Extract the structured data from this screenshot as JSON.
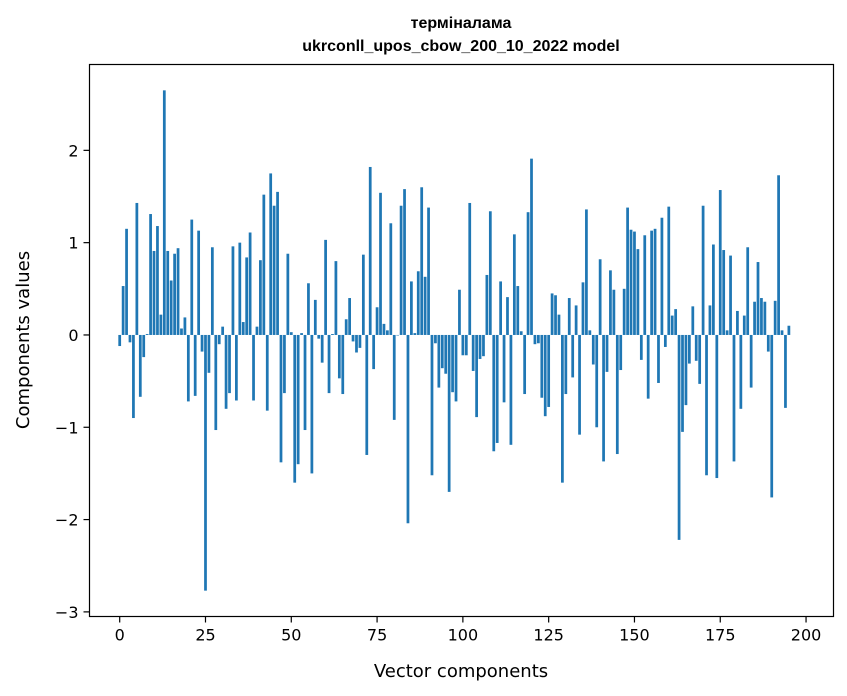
{
  "chart_data": {
    "type": "bar",
    "title_line1": "терміналама",
    "title_line2": "ukrconll_upos_cbow_200_10_2022 model",
    "xlabel": "Vector components",
    "ylabel": "Components values",
    "xlim": [
      -8.8,
      208
    ],
    "ylim": [
      -3.05,
      2.93
    ],
    "x_ticks": [
      0,
      25,
      50,
      75,
      100,
      125,
      150,
      175,
      200
    ],
    "y_ticks": [
      -3,
      -2,
      -1,
      0,
      1,
      2
    ],
    "y_tick_labels": [
      "−3",
      "−2",
      "−1",
      "0",
      "1",
      "2"
    ],
    "bar_color": "#1f77b4",
    "grid": false,
    "legend": "none",
    "values": [
      -0.12,
      0.53,
      1.15,
      -0.08,
      -0.9,
      1.43,
      -0.67,
      -0.24,
      0.01,
      1.31,
      0.91,
      1.18,
      0.22,
      2.65,
      0.91,
      0.59,
      0.88,
      0.94,
      0.07,
      0.19,
      -0.72,
      1.25,
      -0.66,
      1.13,
      -0.18,
      -2.77,
      -0.41,
      0.95,
      -1.03,
      -0.1,
      0.09,
      -0.8,
      -0.63,
      0.96,
      -0.71,
      1.0,
      0.14,
      0.84,
      1.11,
      -0.71,
      0.09,
      0.81,
      1.52,
      -0.82,
      1.75,
      1.4,
      1.55,
      -1.38,
      -0.63,
      0.88,
      0.03,
      -1.6,
      -1.4,
      0.02,
      -1.03,
      0.56,
      -1.5,
      0.38,
      -0.04,
      -0.3,
      1.03,
      -0.63,
      0.01,
      0.8,
      -0.47,
      -0.64,
      0.17,
      0.4,
      -0.07,
      -0.19,
      -0.14,
      0.87,
      -1.3,
      1.82,
      -0.37,
      0.3,
      1.54,
      0.12,
      0.05,
      1.21,
      -0.92,
      0.0,
      1.4,
      1.58,
      -2.04,
      0.58,
      0.02,
      0.69,
      1.6,
      0.63,
      1.38,
      -1.52,
      -0.09,
      -0.57,
      -0.36,
      -0.42,
      -1.7,
      -0.62,
      -0.72,
      0.49,
      -0.22,
      -0.22,
      1.43,
      -0.39,
      -0.89,
      -0.26,
      -0.23,
      0.65,
      1.34,
      -1.26,
      -1.17,
      0.58,
      -0.73,
      0.41,
      -1.19,
      1.09,
      0.53,
      0.04,
      -0.64,
      1.33,
      1.91,
      -0.1,
      -0.09,
      -0.68,
      -0.88,
      -0.78,
      0.45,
      0.43,
      0.22,
      -1.6,
      -0.64,
      0.4,
      -0.46,
      0.32,
      -1.08,
      0.57,
      1.36,
      0.05,
      -0.32,
      -1.0,
      0.82,
      -1.37,
      -0.4,
      0.7,
      0.49,
      -1.29,
      -0.38,
      0.5,
      1.38,
      1.14,
      1.12,
      0.93,
      -0.27,
      1.08,
      -0.69,
      1.13,
      1.15,
      -0.52,
      1.27,
      -0.13,
      1.39,
      0.21,
      0.28,
      -2.22,
      -1.05,
      -0.76,
      -0.31,
      0.31,
      -0.28,
      -0.53,
      1.4,
      -1.52,
      0.32,
      0.98,
      -1.55,
      1.57,
      0.92,
      0.05,
      0.86,
      -1.37,
      0.26,
      -0.8,
      0.21,
      0.95,
      -0.57,
      0.36,
      0.79,
      0.4,
      0.36,
      -0.18,
      -1.76,
      0.37,
      1.73,
      0.05,
      -0.79,
      0.1
    ]
  }
}
